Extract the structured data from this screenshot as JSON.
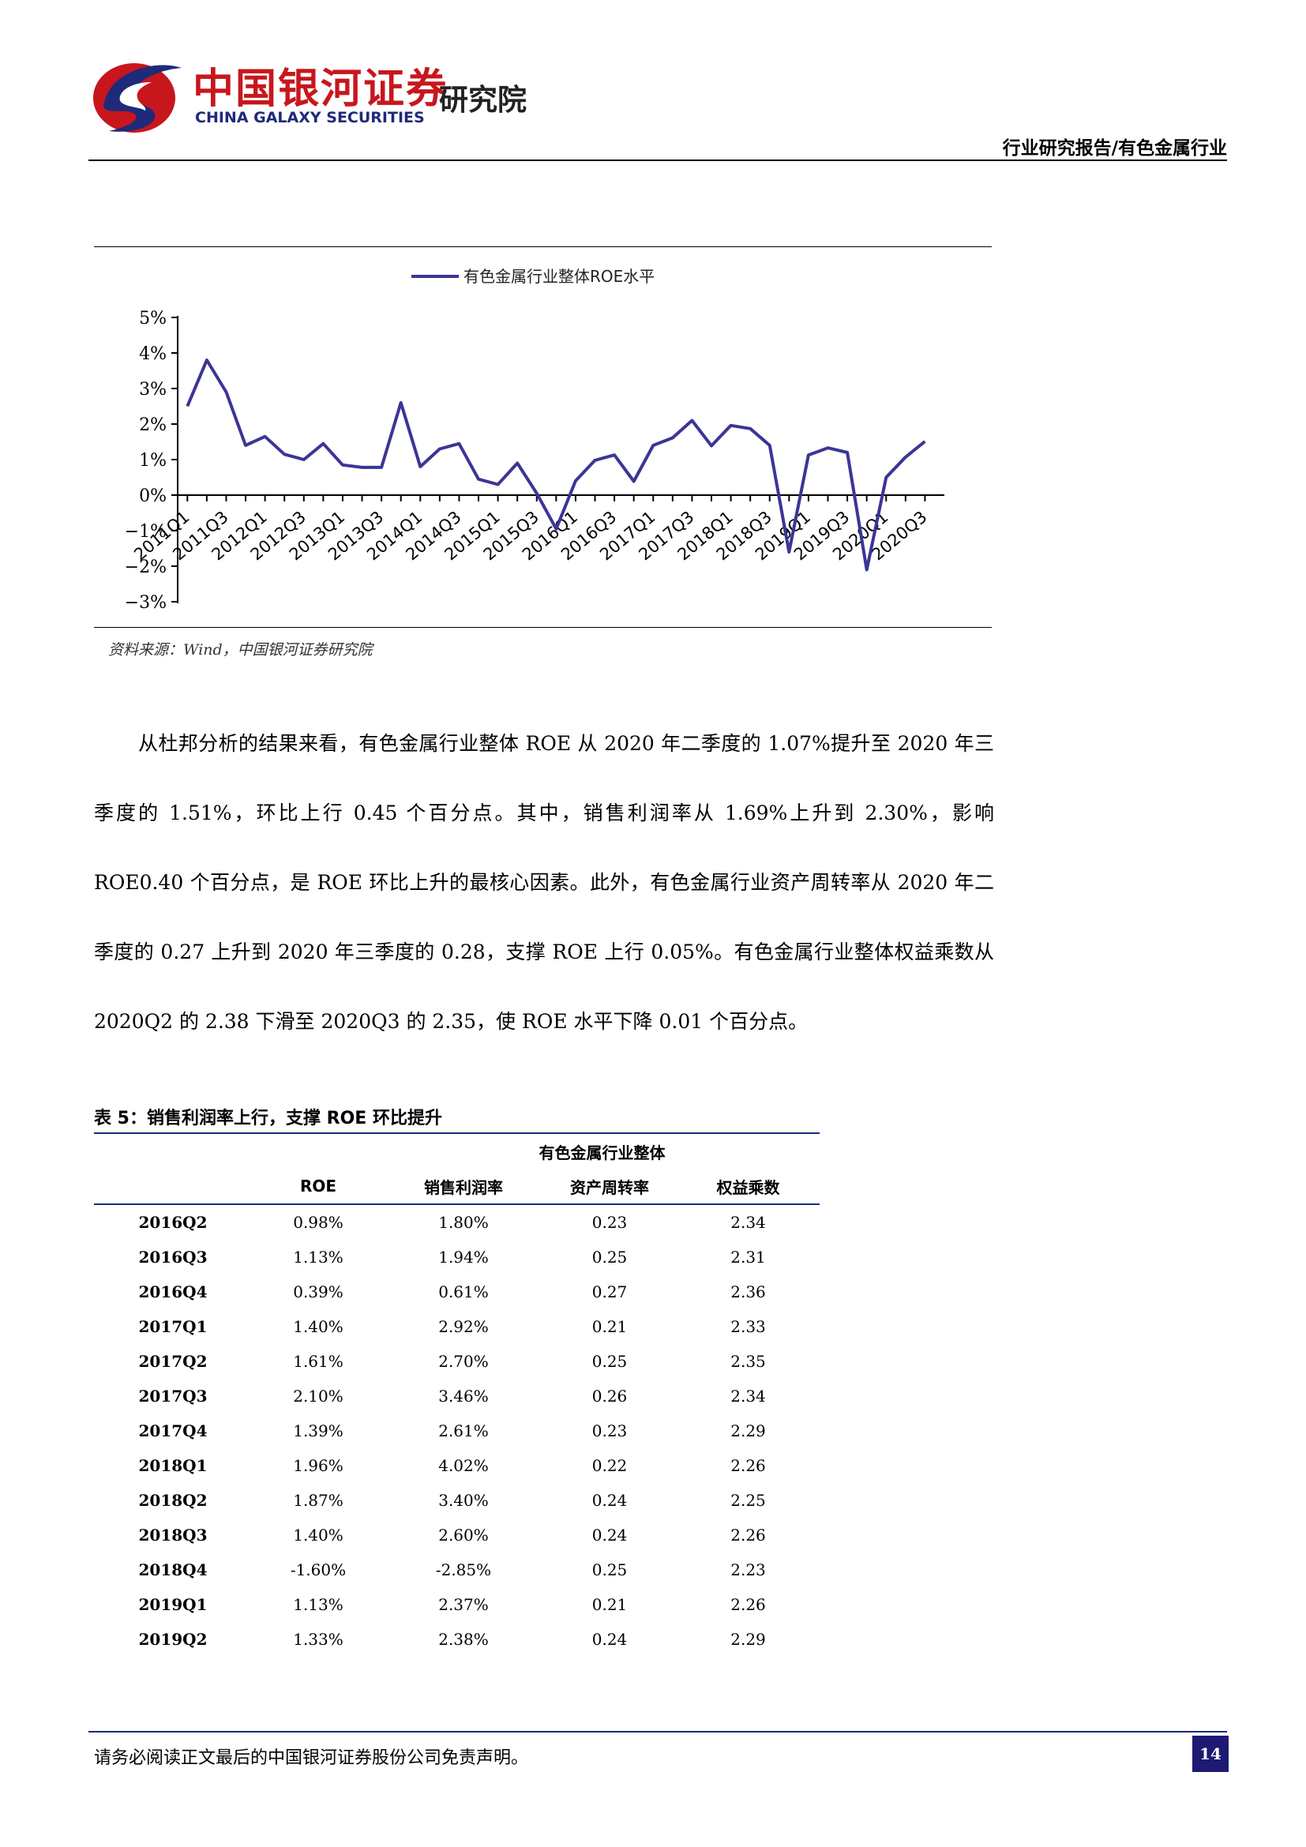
{
  "header": {
    "logo_cn": "中国银河证券",
    "logo_en": "CHINA GALAXY SECURITIES",
    "logo_inst": "研究院",
    "report_type": "行业研究报告/有色金属行业",
    "brand_red": "#c8161d",
    "brand_navy": "#1e2a7a"
  },
  "chart_data": {
    "type": "line",
    "title": "",
    "xlabel": "",
    "ylabel": "",
    "legend_position": "top-center",
    "grid": false,
    "ylim": [
      -0.03,
      0.05
    ],
    "y_ticks": [
      "5%",
      "4%",
      "3%",
      "2%",
      "1%",
      "0%",
      "−1%",
      "−2%",
      "−3%"
    ],
    "x_tick_labels": [
      "2011Q1",
      "2011Q3",
      "2012Q1",
      "2012Q3",
      "2013Q1",
      "2013Q3",
      "2014Q1",
      "2014Q3",
      "2015Q1",
      "2015Q3",
      "2016Q1",
      "2016Q3",
      "2017Q1",
      "2017Q3",
      "2018Q1",
      "2018Q3",
      "2019Q1",
      "2019Q3",
      "2020Q1",
      "2020Q3"
    ],
    "categories": [
      "2011Q1",
      "2011Q2",
      "2011Q3",
      "2011Q4",
      "2012Q1",
      "2012Q2",
      "2012Q3",
      "2012Q4",
      "2013Q1",
      "2013Q2",
      "2013Q3",
      "2013Q4",
      "2014Q1",
      "2014Q2",
      "2014Q3",
      "2014Q4",
      "2015Q1",
      "2015Q2",
      "2015Q3",
      "2015Q4",
      "2016Q1",
      "2016Q2",
      "2016Q3",
      "2016Q4",
      "2017Q1",
      "2017Q2",
      "2017Q3",
      "2017Q4",
      "2018Q1",
      "2018Q2",
      "2018Q3",
      "2018Q4",
      "2019Q1",
      "2019Q2",
      "2019Q3",
      "2019Q4",
      "2020Q1",
      "2020Q2",
      "2020Q3"
    ],
    "series": [
      {
        "name": "有色金属行业整体ROE水平",
        "color": "#3b3596",
        "values": [
          0.025,
          0.038,
          0.029,
          0.014,
          0.0165,
          0.0115,
          0.01,
          0.0145,
          0.0085,
          0.0078,
          0.0078,
          0.026,
          0.008,
          0.013,
          0.0145,
          0.0045,
          0.003,
          0.009,
          0.0005,
          -0.0095,
          0.004,
          0.0098,
          0.0113,
          0.0039,
          0.014,
          0.0161,
          0.021,
          0.0139,
          0.0196,
          0.0187,
          0.014,
          -0.016,
          0.0113,
          0.0133,
          0.012,
          -0.021,
          0.005,
          0.0107,
          0.0151
        ]
      }
    ]
  },
  "chart_source": "资料来源：Wind，中国银河证券研究院",
  "paragraph": "从杜邦分析的结果来看，有色金属行业整体 ROE 从 2020 年二季度的 1.07%提升至 2020 年三季度的 1.51%，环比上行 0.45 个百分点。其中，销售利润率从 1.69%上升到 2.30%，影响 ROE0.40 个百分点，是 ROE 环比上升的最核心因素。此外，有色金属行业资产周转率从 2020 年二季度的 0.27 上升到 2020 年三季度的 0.28，支撑 ROE 上行 0.05%。有色金属行业整体权益乘数从 2020Q2 的 2.38 下滑至 2020Q3 的 2.35，使 ROE 水平下降 0.01 个百分点。",
  "table": {
    "title": "表 5：销售利润率上行，支撑 ROE 环比提升",
    "group_header": "有色金属行业整体",
    "columns": [
      "ROE",
      "销售利润率",
      "资产周转率",
      "权益乘数"
    ],
    "rows": [
      {
        "label": "2016Q2",
        "roe": "0.98%",
        "npm": "1.80%",
        "at": "0.23",
        "em": "2.34"
      },
      {
        "label": "2016Q3",
        "roe": "1.13%",
        "npm": "1.94%",
        "at": "0.25",
        "em": "2.31"
      },
      {
        "label": "2016Q4",
        "roe": "0.39%",
        "npm": "0.61%",
        "at": "0.27",
        "em": "2.36"
      },
      {
        "label": "2017Q1",
        "roe": "1.40%",
        "npm": "2.92%",
        "at": "0.21",
        "em": "2.33"
      },
      {
        "label": "2017Q2",
        "roe": "1.61%",
        "npm": "2.70%",
        "at": "0.25",
        "em": "2.35"
      },
      {
        "label": "2017Q3",
        "roe": "2.10%",
        "npm": "3.46%",
        "at": "0.26",
        "em": "2.34"
      },
      {
        "label": "2017Q4",
        "roe": "1.39%",
        "npm": "2.61%",
        "at": "0.23",
        "em": "2.29"
      },
      {
        "label": "2018Q1",
        "roe": "1.96%",
        "npm": "4.02%",
        "at": "0.22",
        "em": "2.26"
      },
      {
        "label": "2018Q2",
        "roe": "1.87%",
        "npm": "3.40%",
        "at": "0.24",
        "em": "2.25"
      },
      {
        "label": "2018Q3",
        "roe": "1.40%",
        "npm": "2.60%",
        "at": "0.24",
        "em": "2.26"
      },
      {
        "label": "2018Q4",
        "roe": "-1.60%",
        "npm": "-2.85%",
        "at": "0.25",
        "em": "2.23"
      },
      {
        "label": "2019Q1",
        "roe": "1.13%",
        "npm": "2.37%",
        "at": "0.21",
        "em": "2.26"
      },
      {
        "label": "2019Q2",
        "roe": "1.33%",
        "npm": "2.38%",
        "at": "0.24",
        "em": "2.29"
      }
    ]
  },
  "footer": {
    "disclaimer": "请务必阅读正文最后的中国银河证券股份公司免责声明。",
    "page_number": "14"
  }
}
